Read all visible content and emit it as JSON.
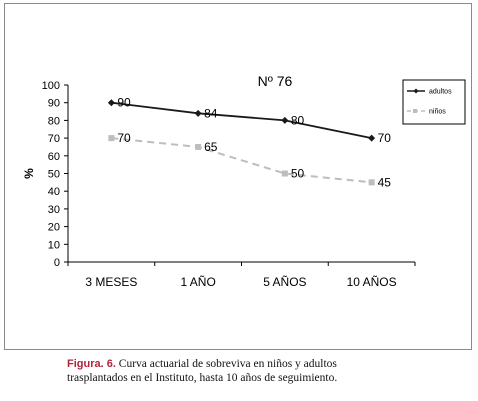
{
  "chart_data": {
    "type": "line",
    "title": "Nº 76",
    "ylabel": "%",
    "xlabel": "",
    "ylim": [
      0,
      100
    ],
    "yticks": [
      0,
      10,
      20,
      30,
      40,
      50,
      60,
      70,
      80,
      90,
      100
    ],
    "categories": [
      "3 MESES",
      "1 AÑO",
      "5 AÑOS",
      "10  AÑOS"
    ],
    "series": [
      {
        "name": "adultos",
        "values": [
          90,
          84,
          80,
          70
        ],
        "color": "#1a1a1a",
        "dashed": false
      },
      {
        "name": "niños",
        "values": [
          70,
          65,
          50,
          45
        ],
        "color": "#bdbdbd",
        "dashed": true
      }
    ],
    "data_labels": {
      "adultos": [
        "90",
        "84",
        "80",
        "70"
      ],
      "niños": [
        "70",
        "65",
        "50",
        "45"
      ]
    },
    "legend_position": "top-right",
    "grid": false
  },
  "caption": {
    "label": "Figura. 6.",
    "text": " Curva actuarial de sobreviva en niños y adultos trasplantados en el Instituto, hasta 10 años de seguimiento."
  }
}
